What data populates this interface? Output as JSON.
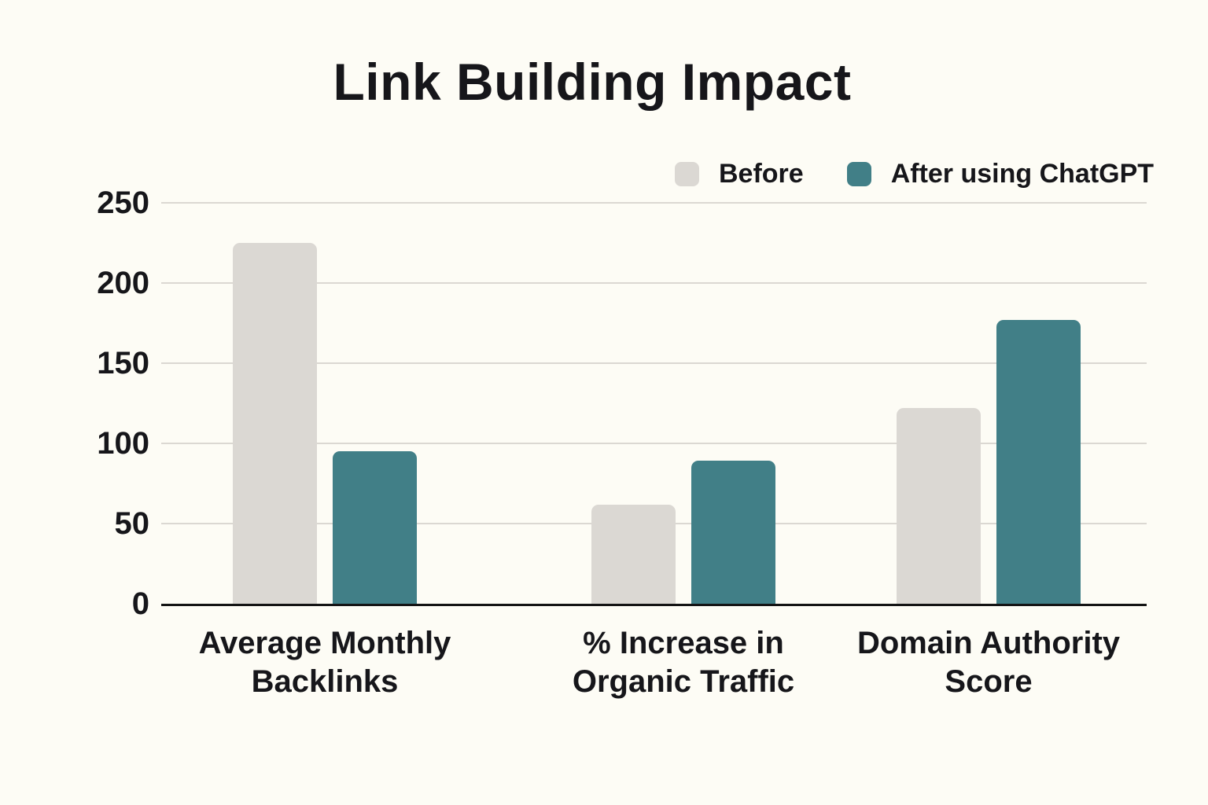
{
  "title": "Link Building Impact",
  "colors": {
    "background": "#fdfcf5",
    "text": "#16161a",
    "grid": "#dbd8d2",
    "axis": "#141414",
    "before_bar": "#dbd8d3",
    "after_bar": "#417f87"
  },
  "chart_data": {
    "type": "bar",
    "title": "Link Building Impact",
    "categories": [
      "Average Monthly Backlinks",
      "% Increase in Organic Traffic",
      "Domain Authority Score"
    ],
    "category_lines": [
      [
        "Average Monthly",
        "Backlinks"
      ],
      [
        "% Increase in",
        "Organic Traffic"
      ],
      [
        "Domain Authority",
        "Score"
      ]
    ],
    "series": [
      {
        "name": "Before",
        "color": "#dbd8d3",
        "values": [
          225,
          62,
          122
        ]
      },
      {
        "name": "After using ChatGPT",
        "color": "#417f87",
        "values": [
          95,
          89,
          177
        ]
      }
    ],
    "y_ticks": [
      0,
      50,
      100,
      150,
      200,
      250
    ],
    "ylim": [
      0,
      250
    ],
    "xlabel": "",
    "ylabel": "",
    "grid": true,
    "legend_position": "top-right"
  }
}
